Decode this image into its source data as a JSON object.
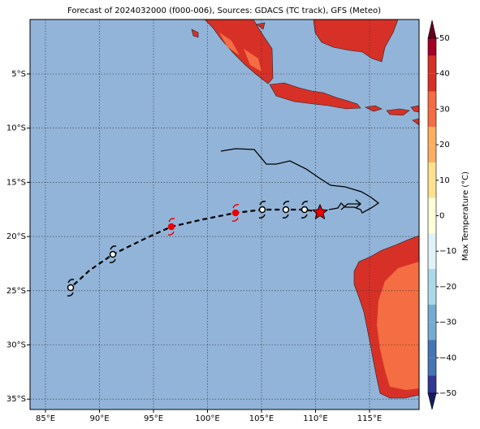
{
  "title": "Forecast of 2024032000 (f000-006), Sources: GDACS (TC track), GFS (Meteo)",
  "map": {
    "lon_labels": [
      "85°E",
      "90°E",
      "95°E",
      "100°E",
      "105°E",
      "110°E",
      "115°E"
    ],
    "lat_labels": [
      "5°S",
      "10°S",
      "15°S",
      "20°S",
      "25°S",
      "30°S",
      "35°S"
    ]
  },
  "colorbar": {
    "label": "Max Temperature (°C)",
    "lim": [
      -50,
      50
    ],
    "ticks": [
      50,
      40,
      30,
      20,
      10,
      0,
      {
        "value": -10,
        "label": "−10"
      },
      {
        "value": -20,
        "label": "−20"
      },
      {
        "value": -30,
        "label": "−30"
      },
      {
        "value": -40,
        "label": "−40"
      },
      {
        "value": -50,
        "label": "−50"
      }
    ],
    "colors": [
      "#a50026",
      "#d73027",
      "#f46d43",
      "#fdae61",
      "#fee090",
      "#ffffd9",
      "#e0f3f8",
      "#abd9e9",
      "#74add1",
      "#4575b4",
      "#313695"
    ]
  }
}
